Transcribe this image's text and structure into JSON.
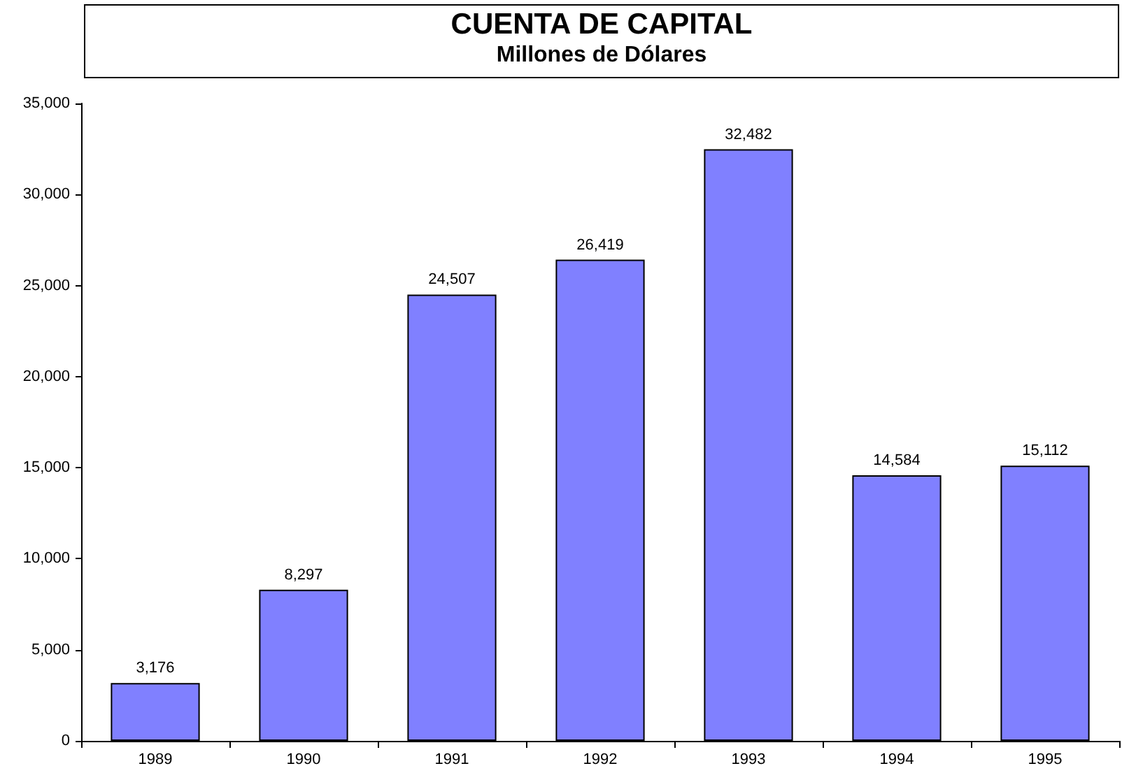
{
  "chart_data": {
    "type": "bar",
    "title": "CUENTA DE CAPITAL",
    "subtitle": "Millones de Dólares",
    "categories": [
      "1989",
      "1990",
      "1991",
      "1992",
      "1993",
      "1994",
      "1995"
    ],
    "values": [
      3176,
      8297,
      24507,
      26419,
      32482,
      14584,
      15112
    ],
    "color": "#8080ff",
    "value_labels": [
      "3,176",
      "8,297",
      "24,507",
      "26,419",
      "32,482",
      "14,584",
      "15,112"
    ],
    "ylim": [
      0,
      35000
    ],
    "yticks": [
      0,
      {
        "value": 5000,
        "label": "5,000"
      },
      {
        "value": 10000,
        "label": "10,000"
      },
      {
        "value": 15000,
        "label": "15,000"
      },
      {
        "value": 20000,
        "label": "20,000"
      },
      {
        "value": 25000,
        "label": "25,000"
      },
      {
        "value": 30000,
        "label": "30,000"
      },
      {
        "value": 35000,
        "label": "35,000"
      }
    ]
  }
}
